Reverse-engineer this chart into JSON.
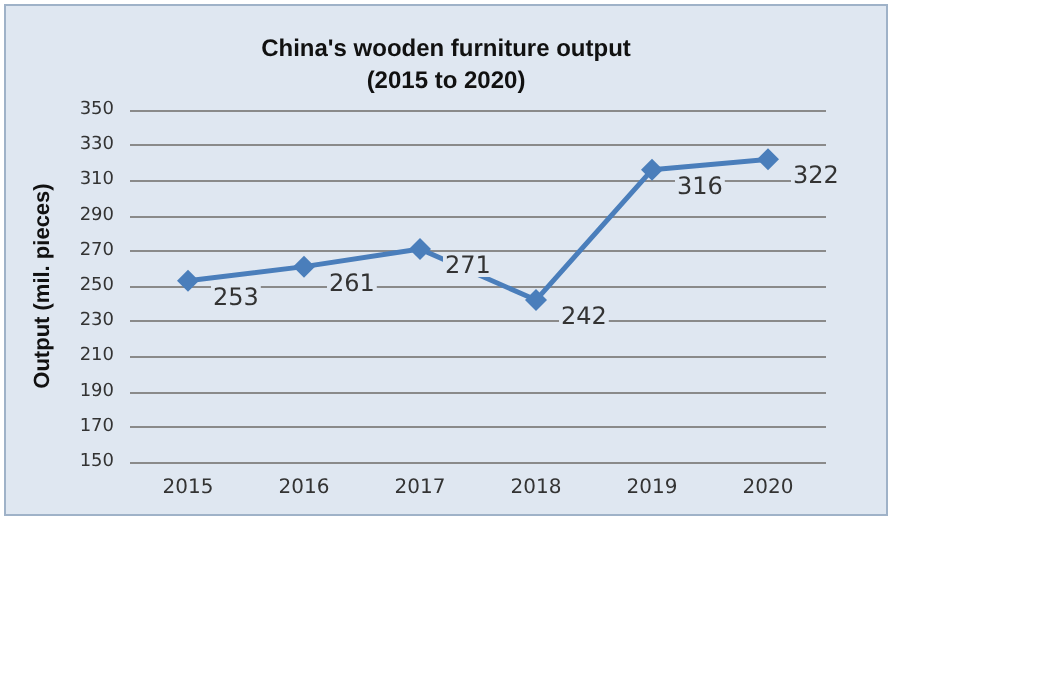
{
  "chart_data": {
    "type": "line",
    "title": "China's wooden furniture output\n(2015 to 2020)",
    "ylabel": "Output (mil. pieces)",
    "categories": [
      "2015",
      "2016",
      "2017",
      "2018",
      "2019",
      "2020"
    ],
    "series": [
      {
        "color": "#4a7ebb",
        "values": [
          253,
          261,
          271,
          242,
          316,
          322
        ]
      }
    ],
    "ylim": [
      150,
      350
    ],
    "yticks": [
      150,
      170,
      190,
      210,
      230,
      250,
      270,
      290,
      310,
      330,
      350
    ],
    "grid": "y",
    "marker": "diamond",
    "line_style": "solid",
    "data_labels": true
  }
}
